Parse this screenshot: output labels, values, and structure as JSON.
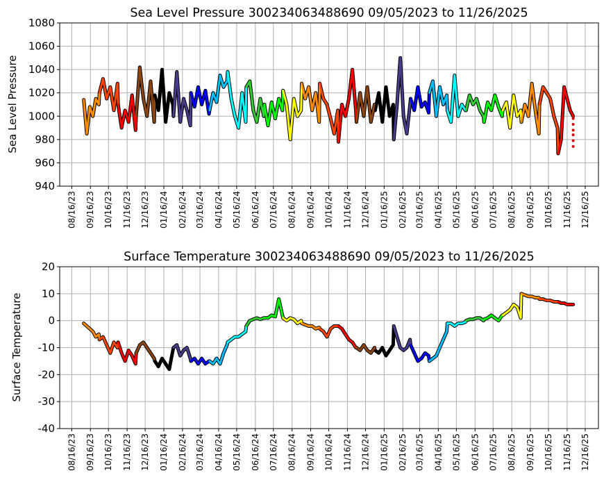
{
  "chart_data": [
    {
      "type": "line",
      "title": "Sea Level Pressure 300234063488690  09/05/2023 to 11/26/2025",
      "xlabel": "",
      "ylabel": "Sea Level Pressure",
      "ylim": [
        940,
        1080
      ],
      "yticks": [
        940,
        960,
        980,
        1000,
        1020,
        1040,
        1060,
        1080
      ],
      "xlim": [
        "2023-07-27",
        "2026-01-07"
      ],
      "xtick_dates": [
        "2023-08-16",
        "2023-09-16",
        "2023-10-16",
        "2023-11-16",
        "2023-12-16",
        "2024-01-16",
        "2024-02-16",
        "2024-03-16",
        "2024-04-16",
        "2024-05-16",
        "2024-06-16",
        "2024-07-16",
        "2024-08-16",
        "2024-09-16",
        "2024-10-16",
        "2024-11-16",
        "2024-12-16",
        "2025-01-16",
        "2025-02-16",
        "2025-03-16",
        "2025-04-16",
        "2025-05-16",
        "2025-06-16",
        "2025-07-16",
        "2025-08-16",
        "2025-09-16",
        "2025-10-16",
        "2025-11-16",
        "2025-12-16"
      ],
      "xtick_labels": [
        "08/16/23",
        "09/16/23",
        "10/16/23",
        "11/16/23",
        "12/16/23",
        "01/16/24",
        "02/16/24",
        "03/16/24",
        "04/16/24",
        "05/16/24",
        "06/16/24",
        "07/16/24",
        "08/16/24",
        "09/16/24",
        "10/16/24",
        "11/16/24",
        "12/16/24",
        "01/16/25",
        "02/16/25",
        "03/16/25",
        "04/16/25",
        "05/16/25",
        "06/16/25",
        "07/16/25",
        "08/16/25",
        "09/16/25",
        "10/16/25",
        "11/16/25",
        "12/16/25"
      ],
      "grid": true,
      "segments": [
        {
          "start": "2023-09-05",
          "end": "2023-09-30",
          "color": "#ff8c00",
          "values": [
            1014,
            985,
            1008,
            1000,
            1015,
            1010
          ]
        },
        {
          "start": "2023-10-01",
          "end": "2023-10-31",
          "color": "#ff4500",
          "values": [
            1020,
            1032,
            1015,
            1025,
            1005,
            1028
          ]
        },
        {
          "start": "2023-11-01",
          "end": "2023-11-30",
          "color": "#ff0000",
          "values": [
            1010,
            990,
            1005,
            995,
            1018,
            988
          ]
        },
        {
          "start": "2023-12-01",
          "end": "2023-12-31",
          "color": "#8b4513",
          "values": [
            1000,
            1042,
            1015,
            1000,
            1030,
            995
          ]
        },
        {
          "start": "2024-01-01",
          "end": "2024-01-31",
          "color": "#000000",
          "values": [
            1018,
            1005,
            1040,
            995,
            1020,
            1010
          ]
        },
        {
          "start": "2024-02-01",
          "end": "2024-02-29",
          "color": "#483d8b",
          "values": [
            1000,
            1038,
            995,
            1015,
            1005,
            992
          ]
        },
        {
          "start": "2024-03-01",
          "end": "2024-03-31",
          "color": "#0000ff",
          "values": [
            1020,
            1008,
            1025,
            1010,
            1022,
            1002
          ]
        },
        {
          "start": "2024-04-01",
          "end": "2024-04-30",
          "color": "#00bfff",
          "values": [
            1005,
            1020,
            1012,
            1035,
            1025,
            1030
          ]
        },
        {
          "start": "2024-05-01",
          "end": "2024-05-31",
          "color": "#00ffff",
          "values": [
            1038,
            1015,
            1000,
            990,
            1020,
            995
          ]
        },
        {
          "start": "2024-06-01",
          "end": "2024-06-30",
          "color": "#32cd32",
          "values": [
            1025,
            1030,
            1005,
            995,
            1015,
            1000
          ]
        },
        {
          "start": "2024-07-01",
          "end": "2024-07-31",
          "color": "#00ff00",
          "values": [
            1010,
            992,
            1012,
            998,
            1015,
            1005
          ]
        },
        {
          "start": "2024-08-01",
          "end": "2024-08-31",
          "color": "#ffff00",
          "values": [
            1022,
            1010,
            980,
            1015,
            1000,
            1005
          ]
        },
        {
          "start": "2024-09-01",
          "end": "2024-09-30",
          "color": "#ff8c00",
          "values": [
            1028,
            1015,
            1025,
            1005,
            1020,
            995
          ]
        },
        {
          "start": "2024-10-01",
          "end": "2024-10-31",
          "color": "#ff4500",
          "values": [
            1028,
            1015,
            1010,
            998,
            985,
            1005
          ]
        },
        {
          "start": "2024-11-01",
          "end": "2024-11-30",
          "color": "#ff0000",
          "values": [
            978,
            1010,
            1000,
            1015,
            1040,
            1005
          ]
        },
        {
          "start": "2024-12-01",
          "end": "2024-12-31",
          "color": "#8b4513",
          "values": [
            995,
            1020,
            1000,
            1025,
            995,
            1010
          ]
        },
        {
          "start": "2025-01-01",
          "end": "2025-01-31",
          "color": "#000000",
          "values": [
            1005,
            1020,
            995,
            1025,
            1000,
            1010
          ]
        },
        {
          "start": "2025-02-01",
          "end": "2025-02-28",
          "color": "#483d8b",
          "values": [
            980,
            1010,
            1050,
            1000,
            985,
            1010
          ]
        },
        {
          "start": "2025-03-01",
          "end": "2025-03-31",
          "color": "#0000ff",
          "values": [
            1015,
            1005,
            1025,
            1008,
            1012,
            1003
          ]
        },
        {
          "start": "2025-04-01",
          "end": "2025-04-30",
          "color": "#00bfff",
          "values": [
            1020,
            1030,
            1000,
            1025,
            1010,
            1018
          ]
        },
        {
          "start": "2025-05-01",
          "end": "2025-05-31",
          "color": "#00ffff",
          "values": [
            1005,
            995,
            1035,
            1000,
            1010,
            1005
          ]
        },
        {
          "start": "2025-06-01",
          "end": "2025-06-30",
          "color": "#32cd32",
          "values": [
            1005,
            1018,
            1010,
            1015,
            1005,
            1000
          ]
        },
        {
          "start": "2025-07-01",
          "end": "2025-07-31",
          "color": "#00ff00",
          "values": [
            995,
            1012,
            1005,
            1018,
            1008,
            1000
          ]
        },
        {
          "start": "2025-08-01",
          "end": "2025-08-31",
          "color": "#ffff00",
          "values": [
            1005,
            1012,
            990,
            1018,
            1000,
            1005
          ]
        },
        {
          "start": "2025-09-01",
          "end": "2025-09-30",
          "color": "#ff8c00",
          "values": [
            995,
            1010,
            1000,
            1028,
            1005,
            985
          ]
        },
        {
          "start": "2025-10-01",
          "end": "2025-10-31",
          "color": "#ff4500",
          "values": [
            1010,
            1025,
            1020,
            1015,
            1000,
            990
          ]
        },
        {
          "start": "2025-11-01",
          "end": "2025-11-26",
          "color": "#ff0000",
          "values": [
            968,
            980,
            1025,
            1015,
            1005,
            1000
          ]
        }
      ],
      "end_markers": {
        "date": "2025-11-26",
        "color": "#cc0000",
        "values": [
          998,
          993,
          988,
          984,
          979,
          974
        ]
      }
    },
    {
      "type": "line",
      "title": "Surface Temperature 300234063488690  09/05/2023 to 11/26/2025",
      "xlabel": "",
      "ylabel": "Surface Temperature",
      "ylim": [
        -40,
        20
      ],
      "yticks": [
        -40,
        -30,
        -20,
        -10,
        0,
        10,
        20
      ],
      "xlim": [
        "2023-07-27",
        "2026-01-07"
      ],
      "xtick_dates": [
        "2023-08-16",
        "2023-09-16",
        "2023-10-16",
        "2023-11-16",
        "2023-12-16",
        "2024-01-16",
        "2024-02-16",
        "2024-03-16",
        "2024-04-16",
        "2024-05-16",
        "2024-06-16",
        "2024-07-16",
        "2024-08-16",
        "2024-09-16",
        "2024-10-16",
        "2024-11-16",
        "2024-12-16",
        "2025-01-16",
        "2025-02-16",
        "2025-03-16",
        "2025-04-16",
        "2025-05-16",
        "2025-06-16",
        "2025-07-16",
        "2025-08-16",
        "2025-09-16",
        "2025-10-16",
        "2025-11-16",
        "2025-12-16"
      ],
      "xtick_labels": [
        "08/16/23",
        "09/16/23",
        "10/16/23",
        "11/16/23",
        "12/16/23",
        "01/16/24",
        "02/16/24",
        "03/16/24",
        "04/16/24",
        "05/16/24",
        "06/16/24",
        "07/16/24",
        "08/16/24",
        "09/16/24",
        "10/16/24",
        "11/16/24",
        "12/16/24",
        "01/16/25",
        "02/16/25",
        "03/16/25",
        "04/16/25",
        "05/16/25",
        "06/16/25",
        "07/16/25",
        "08/16/25",
        "09/16/25",
        "10/16/25",
        "11/16/25",
        "12/16/25"
      ],
      "grid": true,
      "segments": [
        {
          "start": "2023-09-05",
          "end": "2023-09-30",
          "color": "#ff8c00",
          "values": [
            -1,
            -2,
            -3,
            -4,
            -6,
            -5
          ]
        },
        {
          "start": "2023-10-01",
          "end": "2023-10-31",
          "color": "#ff4500",
          "values": [
            -7,
            -6,
            -9,
            -12,
            -8,
            -10
          ]
        },
        {
          "start": "2023-11-01",
          "end": "2023-11-30",
          "color": "#ff0000",
          "values": [
            -8,
            -12,
            -15,
            -11,
            -13,
            -16
          ]
        },
        {
          "start": "2023-12-01",
          "end": "2023-12-31",
          "color": "#8b4513",
          "values": [
            -12,
            -9,
            -8,
            -10,
            -12,
            -14
          ]
        },
        {
          "start": "2024-01-01",
          "end": "2024-01-31",
          "color": "#000000",
          "values": [
            -15,
            -17,
            -14,
            -16,
            -18,
            -11
          ]
        },
        {
          "start": "2024-02-01",
          "end": "2024-02-29",
          "color": "#483d8b",
          "values": [
            -10,
            -9,
            -13,
            -11,
            -10,
            -14
          ]
        },
        {
          "start": "2024-03-01",
          "end": "2024-03-31",
          "color": "#0000ff",
          "values": [
            -15,
            -14,
            -16,
            -14,
            -16,
            -15
          ]
        },
        {
          "start": "2024-04-01",
          "end": "2024-04-30",
          "color": "#00bfff",
          "values": [
            -15,
            -16,
            -14,
            -16,
            -12,
            -9
          ]
        },
        {
          "start": "2024-05-01",
          "end": "2024-05-31",
          "color": "#00ffff",
          "values": [
            -8,
            -7,
            -6,
            -6,
            -5,
            -4
          ]
        },
        {
          "start": "2024-06-01",
          "end": "2024-06-30",
          "color": "#32cd32",
          "values": [
            -2,
            0,
            0.5,
            1,
            0.5,
            1
          ]
        },
        {
          "start": "2024-07-01",
          "end": "2024-07-31",
          "color": "#00ff00",
          "values": [
            1,
            1,
            2,
            1.5,
            8,
            2
          ]
        },
        {
          "start": "2024-08-01",
          "end": "2024-08-31",
          "color": "#ffff00",
          "values": [
            1,
            0,
            1,
            0.5,
            -1,
            0
          ]
        },
        {
          "start": "2024-09-01",
          "end": "2024-09-30",
          "color": "#ff8c00",
          "values": [
            -1,
            -1.5,
            -2,
            -2,
            -3,
            -2.5
          ]
        },
        {
          "start": "2024-10-01",
          "end": "2024-10-31",
          "color": "#ff4500",
          "values": [
            -3,
            -4,
            -6,
            -3,
            -2,
            -2
          ]
        },
        {
          "start": "2024-11-01",
          "end": "2024-11-30",
          "color": "#ff0000",
          "values": [
            -2,
            -3,
            -5,
            -7,
            -8,
            -10
          ]
        },
        {
          "start": "2024-12-01",
          "end": "2024-12-31",
          "color": "#8b4513",
          "values": [
            -10,
            -11,
            -9,
            -11,
            -12,
            -10
          ]
        },
        {
          "start": "2025-01-01",
          "end": "2025-01-31",
          "color": "#000000",
          "values": [
            -11,
            -12,
            -10,
            -13,
            -11,
            -9
          ]
        },
        {
          "start": "2025-02-01",
          "end": "2025-02-28",
          "color": "#483d8b",
          "values": [
            -2,
            -6,
            -10,
            -11,
            -10,
            -7
          ]
        },
        {
          "start": "2025-03-01",
          "end": "2025-03-31",
          "color": "#0000ff",
          "values": [
            -9,
            -12,
            -15,
            -14,
            -12,
            -13
          ]
        },
        {
          "start": "2025-04-01",
          "end": "2025-04-30",
          "color": "#00bfff",
          "values": [
            -15,
            -14,
            -13,
            -10,
            -7,
            -4
          ]
        },
        {
          "start": "2025-05-01",
          "end": "2025-05-31",
          "color": "#00ffff",
          "values": [
            -1,
            -1,
            -2,
            -1,
            -1,
            -0.5
          ]
        },
        {
          "start": "2025-06-01",
          "end": "2025-06-30",
          "color": "#32cd32",
          "values": [
            0,
            0.5,
            0.5,
            1,
            1,
            0
          ]
        },
        {
          "start": "2025-07-01",
          "end": "2025-07-31",
          "color": "#00ff00",
          "values": [
            0.5,
            1,
            2,
            1,
            0,
            2
          ]
        },
        {
          "start": "2025-08-01",
          "end": "2025-08-31",
          "color": "#ffff00",
          "values": [
            2,
            3,
            4,
            6,
            5,
            1
          ]
        },
        {
          "start": "2025-09-01",
          "end": "2025-09-30",
          "color": "#ff8c00",
          "values": [
            10,
            9.5,
            9,
            9,
            8.5,
            8.5
          ]
        },
        {
          "start": "2025-10-01",
          "end": "2025-10-31",
          "color": "#ff4500",
          "values": [
            8,
            8,
            7.5,
            7.5,
            7,
            7
          ]
        },
        {
          "start": "2025-11-01",
          "end": "2025-11-26",
          "color": "#ff0000",
          "values": [
            7,
            6.5,
            6.5,
            6,
            6,
            6
          ]
        }
      ]
    }
  ]
}
